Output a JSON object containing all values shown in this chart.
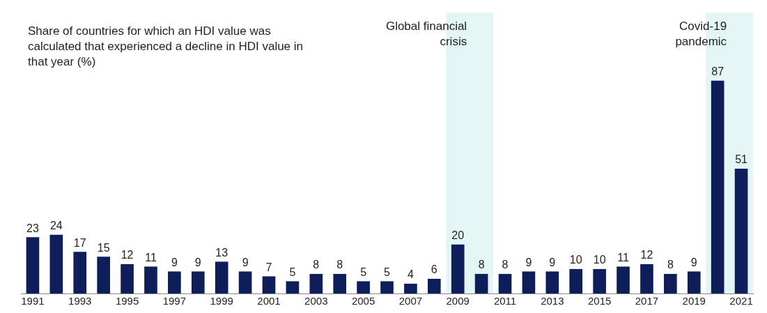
{
  "chart_data": {
    "type": "bar",
    "title": "Share of countries for which an HDI value was calculated that experienced a decline in HDI value in that year (%)",
    "x": [
      1991,
      1992,
      1993,
      1994,
      1995,
      1996,
      1997,
      1998,
      1999,
      2000,
      2001,
      2002,
      2003,
      2004,
      2005,
      2006,
      2007,
      2008,
      2009,
      2010,
      2011,
      2012,
      2013,
      2014,
      2015,
      2016,
      2017,
      2018,
      2019,
      2020,
      2021
    ],
    "values": [
      23,
      24,
      17,
      15,
      12,
      11,
      9,
      9,
      13,
      9,
      7,
      5,
      8,
      8,
      5,
      5,
      4,
      6,
      20,
      8,
      8,
      9,
      9,
      10,
      10,
      11,
      12,
      8,
      9,
      87,
      51
    ],
    "color": "#0e1e5b",
    "xlim": [
      1990.5,
      2021.5
    ],
    "xticks": [
      1991,
      1993,
      1995,
      1997,
      1999,
      2001,
      2003,
      2005,
      2007,
      2009,
      2011,
      2013,
      2015,
      2017,
      2019,
      2021
    ],
    "bands": [
      {
        "axis": "x",
        "from": 2008.5,
        "to": 2010.5,
        "label": "Global financial crisis",
        "color": "#e3f6f3"
      },
      {
        "axis": "x",
        "from": 2019.5,
        "to": 2021.5,
        "label": "Covid-19 pandemic",
        "color": "#e3f6f3"
      }
    ],
    "data_labels": true,
    "tick_labels": "x",
    "grid": false,
    "legend": false
  }
}
